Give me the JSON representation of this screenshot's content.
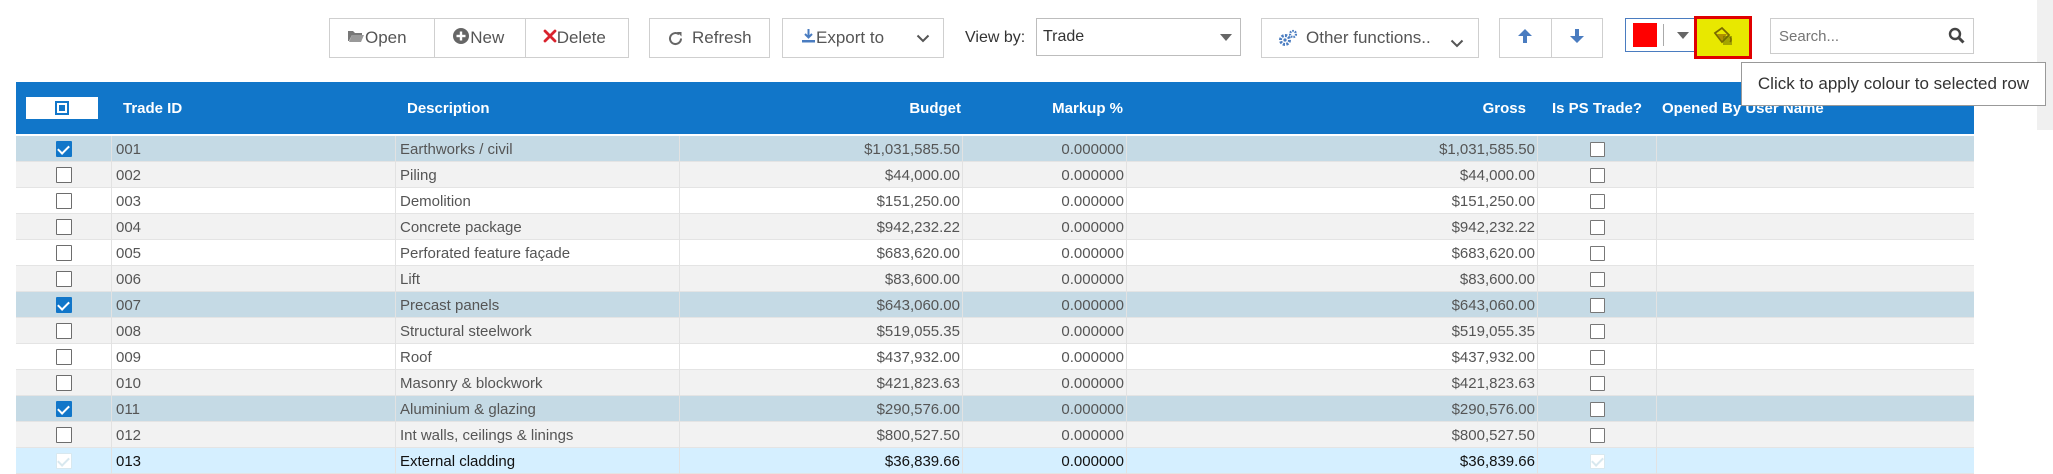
{
  "toolbar": {
    "open_label": "Open",
    "new_label": "New",
    "delete_label": "Delete",
    "refresh_label": "Refresh",
    "export_label": "Export to",
    "view_by_label": "View by:",
    "view_by_value": "Trade",
    "other_functions_label": "Other functions..",
    "search_placeholder": "Search...",
    "colour_swatch": "#ff0000",
    "apply_colour_highlight": "#e8e800",
    "apply_colour_border": "#e00000"
  },
  "tooltip": "Click to apply colour to selected row",
  "colors": {
    "header": "#1176c9",
    "selected_row": "#c5dae5",
    "alt_row": "#f2f2f2",
    "active_row": "#d5efff"
  },
  "table": {
    "columns": [
      "Trade ID",
      "Description",
      "Budget",
      "Markup %",
      "Gross",
      "Is PS Trade?",
      "Opened By User Name"
    ],
    "rows": [
      {
        "checked": true,
        "id": "001",
        "description": "Earthworks / civil",
        "budget": "$1,031,585.50",
        "markup": "0.000000",
        "gross": "$1,031,585.50"
      },
      {
        "checked": false,
        "id": "002",
        "description": "Piling",
        "budget": "$44,000.00",
        "markup": "0.000000",
        "gross": "$44,000.00"
      },
      {
        "checked": false,
        "id": "003",
        "description": "Demolition",
        "budget": "$151,250.00",
        "markup": "0.000000",
        "gross": "$151,250.00"
      },
      {
        "checked": false,
        "id": "004",
        "description": "Concrete package",
        "budget": "$942,232.22",
        "markup": "0.000000",
        "gross": "$942,232.22"
      },
      {
        "checked": false,
        "id": "005",
        "description": "Perforated feature façade",
        "budget": "$683,620.00",
        "markup": "0.000000",
        "gross": "$683,620.00"
      },
      {
        "checked": false,
        "id": "006",
        "description": "Lift",
        "budget": "$83,600.00",
        "markup": "0.000000",
        "gross": "$83,600.00"
      },
      {
        "checked": true,
        "id": "007",
        "description": "Precast panels",
        "budget": "$643,060.00",
        "markup": "0.000000",
        "gross": "$643,060.00"
      },
      {
        "checked": false,
        "id": "008",
        "description": "Structural steelwork",
        "budget": "$519,055.35",
        "markup": "0.000000",
        "gross": "$519,055.35"
      },
      {
        "checked": false,
        "id": "009",
        "description": "Roof",
        "budget": "$437,932.00",
        "markup": "0.000000",
        "gross": "$437,932.00"
      },
      {
        "checked": false,
        "id": "010",
        "description": "Masonry & blockwork",
        "budget": "$421,823.63",
        "markup": "0.000000",
        "gross": "$421,823.63"
      },
      {
        "checked": true,
        "id": "011",
        "description": "Aluminium & glazing",
        "budget": "$290,576.00",
        "markup": "0.000000",
        "gross": "$290,576.00"
      },
      {
        "checked": false,
        "id": "012",
        "description": "Int walls, ceilings & linings",
        "budget": "$800,527.50",
        "markup": "0.000000",
        "gross": "$800,527.50"
      },
      {
        "checked": false,
        "id": "013",
        "description": "External cladding",
        "budget": "$36,839.66",
        "markup": "0.000000",
        "gross": "$36,839.66",
        "active": true
      }
    ]
  }
}
